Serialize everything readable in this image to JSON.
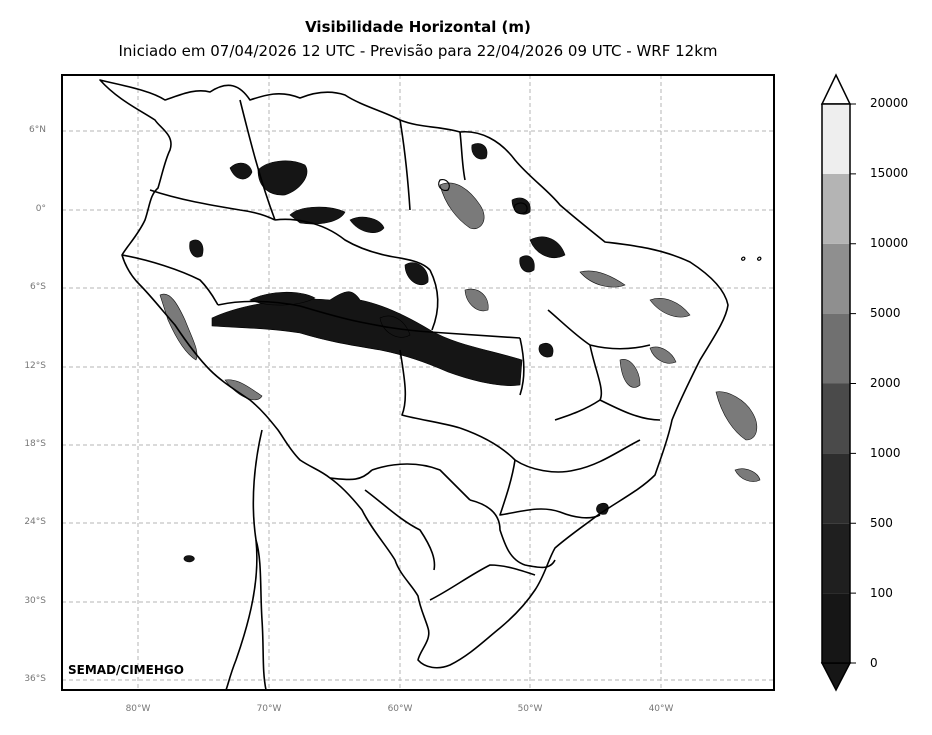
{
  "title": "Visibilidade Horizontal (m)",
  "subtitle": "Iniciado em 07/04/2026 12 UTC - Previsão para 22/04/2026 09 UTC - WRF 12km",
  "credit": "SEMAD/CIMEHGO",
  "lat_ticks": [
    "6°N",
    "0°",
    "6°S",
    "12°S",
    "18°S",
    "24°S",
    "30°S",
    "36°S"
  ],
  "lon_ticks": [
    "80°W",
    "70°W",
    "60°W",
    "50°W",
    "40°W"
  ],
  "colorbar": {
    "levels": [
      "0",
      "100",
      "500",
      "1000",
      "2000",
      "5000",
      "10000",
      "15000",
      "20000"
    ],
    "colors": [
      "#161616",
      "#1f1f1f",
      "#2e2e2e",
      "#4a4a4a",
      "#707070",
      "#8f8f8f",
      "#b4b4b4",
      "#eeeeee"
    ],
    "extend": "both"
  },
  "map": {
    "projection": "PlateCarree",
    "lon_range": [
      -86,
      -31.5
    ],
    "lat_range": [
      -37,
      10.5
    ],
    "grid": "dashed"
  }
}
